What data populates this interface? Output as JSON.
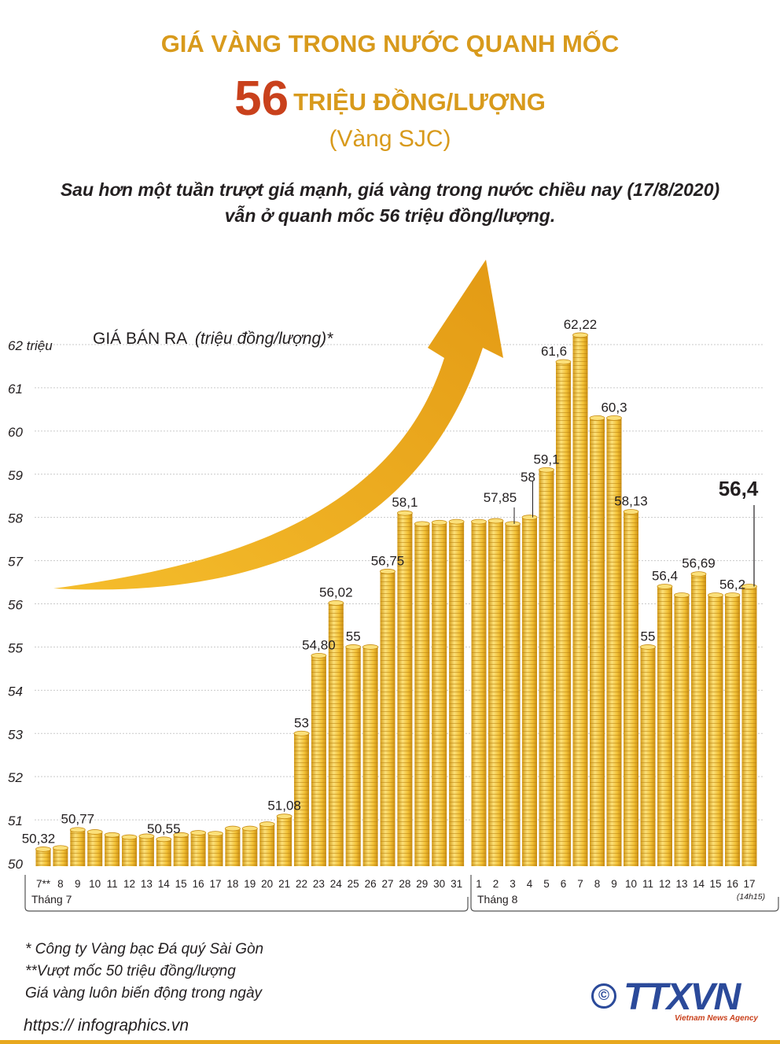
{
  "header": {
    "title_line1": "GIÁ VÀNG TRONG NƯỚC QUANH MỐC",
    "title_number": "56",
    "title_line2": "TRIỆU ĐỒNG/LƯỢNG",
    "title_line3": "(Vàng SJC)",
    "subtitle_line1": "Sau hơn một tuần trượt giá mạnh, giá vàng trong nước chiều nay (17/8/2020)",
    "subtitle_line2": "vẫn ở quanh mốc 56 triệu đồng/lượng."
  },
  "chart_data": {
    "type": "bar",
    "title": "GIÁ BÁN RA",
    "title_unit": "(triệu đồng/lượng)*",
    "ylim": [
      50,
      62
    ],
    "y_ticks": [
      "50",
      "51",
      "52",
      "53",
      "54",
      "55",
      "56",
      "57",
      "58",
      "59",
      "60",
      "61",
      "62 triệu"
    ],
    "categories": [
      "7**",
      "8",
      "9",
      "10",
      "11",
      "12",
      "13",
      "14",
      "15",
      "16",
      "17",
      "18",
      "19",
      "20",
      "21",
      "22",
      "23",
      "24",
      "25",
      "26",
      "27",
      "28",
      "29",
      "30",
      "31",
      "1",
      "2",
      "3",
      "4",
      "5",
      "6",
      "7",
      "8",
      "9",
      "10",
      "11",
      "12",
      "13",
      "14",
      "15",
      "16",
      "17"
    ],
    "values": [
      50.32,
      50.35,
      50.77,
      50.72,
      50.65,
      50.6,
      50.62,
      50.55,
      50.65,
      50.7,
      50.68,
      50.8,
      50.8,
      50.9,
      51.08,
      53,
      54.8,
      56.02,
      55,
      55,
      56.75,
      58.1,
      57.85,
      57.88,
      57.9,
      57.9,
      57.92,
      57.85,
      58,
      59.1,
      61.6,
      62.22,
      60.3,
      60.3,
      58.13,
      55,
      56.4,
      56.2,
      56.69,
      56.2,
      56.2,
      56.4
    ],
    "labels": [
      {
        "index": 0,
        "text": "50,32"
      },
      {
        "index": 2,
        "text": "50,77"
      },
      {
        "index": 7,
        "text": "50,55"
      },
      {
        "index": 14,
        "text": "51,08"
      },
      {
        "index": 15,
        "text": "53"
      },
      {
        "index": 16,
        "text": "54,80"
      },
      {
        "index": 17,
        "text": "56,02"
      },
      {
        "index": 18,
        "text": "55"
      },
      {
        "index": 20,
        "text": "56,75"
      },
      {
        "index": 21,
        "text": "58,1"
      },
      {
        "index": 27,
        "text": "57,85"
      },
      {
        "index": 28,
        "text": "58"
      },
      {
        "index": 29,
        "text": "59,1"
      },
      {
        "index": 30,
        "text": "61,6"
      },
      {
        "index": 31,
        "text": "62,22"
      },
      {
        "index": 33,
        "text": "60,3"
      },
      {
        "index": 34,
        "text": "58,13"
      },
      {
        "index": 35,
        "text": "55"
      },
      {
        "index": 36,
        "text": "56,4"
      },
      {
        "index": 38,
        "text": "56,69"
      },
      {
        "index": 40,
        "text": "56,2"
      },
      {
        "index": 41,
        "text": "56,4"
      }
    ],
    "month_groups": [
      {
        "label": "Tháng 7",
        "from": 0,
        "to": 24
      },
      {
        "label": "Tháng 8",
        "from": 25,
        "to": 41
      }
    ],
    "last_time_note": "(14h15)",
    "colors": {
      "coin": "#f2c035",
      "coin_dark": "#d39a18",
      "coin_light": "#fbe07a",
      "arrow": "#eba51c"
    }
  },
  "footnotes": {
    "note1": "* Công ty Vàng bạc Đá quý Sài Gòn",
    "note2": "**Vượt mốc 50 triệu đồng/lượng",
    "note3": "Giá vàng luôn biến động trong ngày"
  },
  "footer": {
    "url": "https:// infographics.vn",
    "copyright": "©",
    "logo": "TTXVN",
    "logo_sub": "Vietnam News Agency"
  }
}
